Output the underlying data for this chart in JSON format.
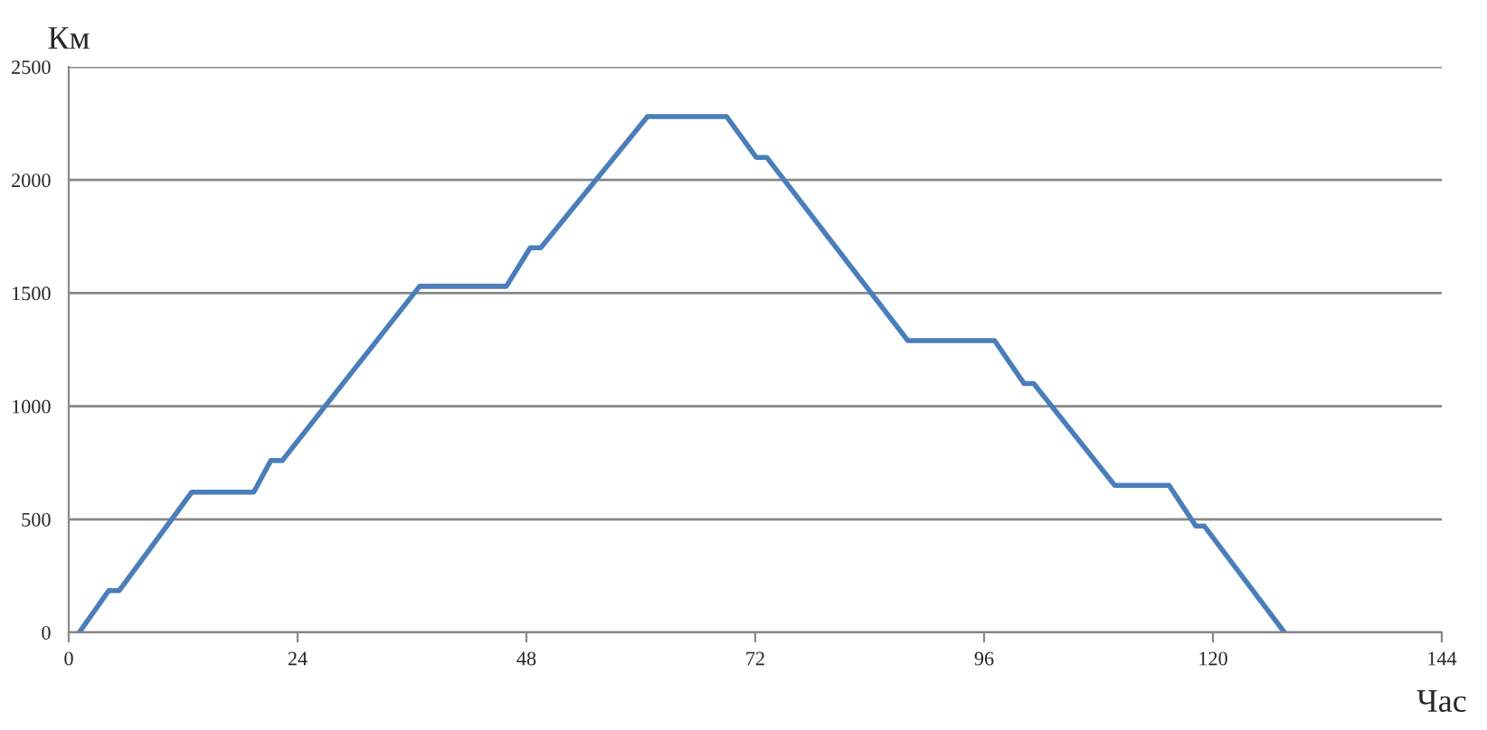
{
  "chart_data": {
    "type": "line",
    "xlabel": "Час",
    "ylabel": "Км",
    "series": [
      {
        "color": "#4a7ebb",
        "x": [
          1.1,
          4.2,
          5.3,
          12.9,
          19.4,
          21.2,
          22.4,
          36.8,
          45.9,
          48.4,
          49.5,
          60.7,
          69,
          72.1,
          73.2,
          88,
          97.1,
          100.2,
          101.2,
          109.7,
          115.4,
          118.2,
          119.1,
          127.5
        ],
        "values": [
          0,
          185,
          185,
          620,
          620,
          760,
          760,
          1530,
          1530,
          1700,
          1700,
          2280,
          2280,
          2100,
          2100,
          1290,
          1290,
          1100,
          1100,
          650,
          650,
          470,
          470,
          0
        ]
      }
    ],
    "xlim": [
      0,
      144
    ],
    "xticks": [
      0,
      24,
      48,
      72,
      96,
      120,
      144
    ],
    "ylim": [
      0,
      2500
    ],
    "yticks": [
      0,
      500,
      1000,
      1500,
      2000,
      2500
    ],
    "grid": "y",
    "legend": false,
    "marker": "none",
    "line_style": "solid"
  }
}
